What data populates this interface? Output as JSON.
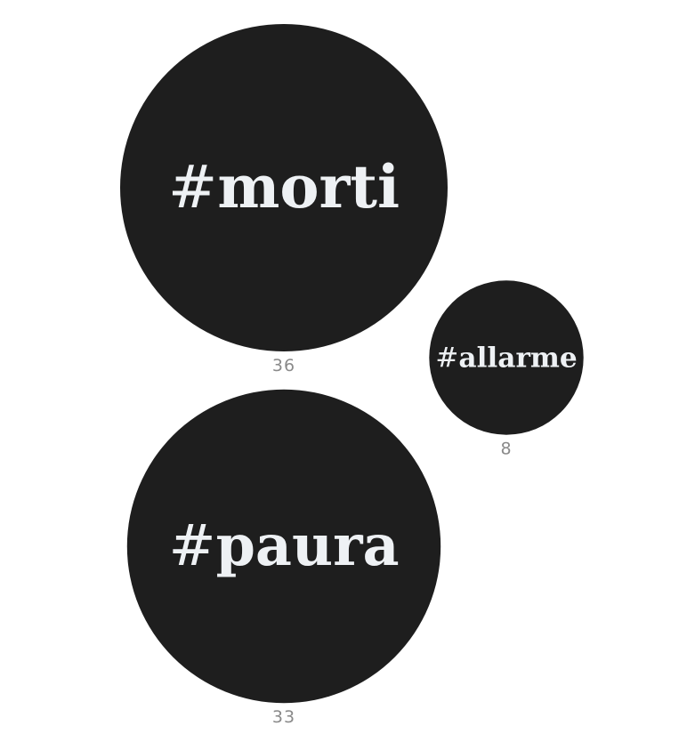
{
  "chart_data": {
    "type": "bubble",
    "title": "",
    "legend": "none",
    "grid": false,
    "items": [
      {
        "hashtag": "#morti",
        "hash": "#",
        "word": "morti",
        "count": "36",
        "value": 36
      },
      {
        "hashtag": "#paura",
        "hash": "#",
        "word": "paura",
        "count": "33",
        "value": 33
      },
      {
        "hashtag": "#allarme",
        "hash": "#",
        "word": "allarme",
        "count": "8",
        "value": 8
      }
    ],
    "colors": {
      "bubble": "#1e1e1e",
      "label": "#eef1f4",
      "count": "#8a8a8a",
      "background": "#ffffff"
    }
  }
}
